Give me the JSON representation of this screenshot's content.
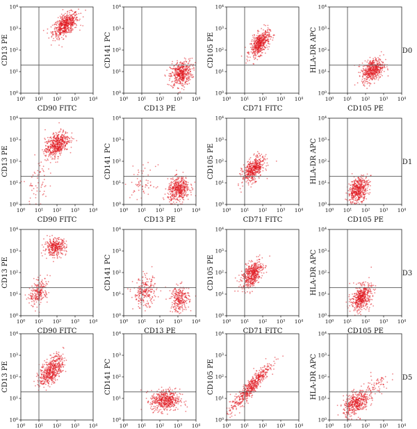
{
  "chart_data": {
    "type": "scatter",
    "axis_scale": "log",
    "axis_range": [
      1,
      10000
    ],
    "tick_labels": [
      "10⁰",
      "10¹",
      "10²",
      "10³",
      "10⁴"
    ],
    "point_color": "#e0161d",
    "rows": [
      {
        "label": "D0",
        "panels": [
          {
            "xlabel": "CD90 FITC",
            "ylabel": "CD13 PE",
            "gate": {
              "x": 10,
              "y": 20
            },
            "clusters": [
              {
                "cx": 300,
                "cy": 1500,
                "sx": 0.35,
                "sy": 0.28,
                "rho": 0.55,
                "n": 560
              }
            ]
          },
          {
            "xlabel": "CD13 PE",
            "ylabel": "CD141 PC",
            "gate": {
              "x": 10,
              "y": 20
            },
            "clusters": [
              {
                "cx": 1500,
                "cy": 8,
                "sx": 0.3,
                "sy": 0.3,
                "rho": 0.2,
                "n": 460
              }
            ]
          },
          {
            "xlabel": "CD71 FITC",
            "ylabel": "CD105 PE",
            "gate": {
              "x": 10,
              "y": 20
            },
            "clusters": [
              {
                "cx": 70,
                "cy": 200,
                "sx": 0.27,
                "sy": 0.3,
                "rho": 0.55,
                "n": 500
              }
            ]
          },
          {
            "xlabel": "CD105 PE",
            "ylabel": "HLA-DR APC",
            "gate": {
              "x": 10,
              "y": 20
            },
            "clusters": [
              {
                "cx": 250,
                "cy": 12,
                "sx": 0.3,
                "sy": 0.27,
                "rho": 0.35,
                "n": 500
              }
            ]
          }
        ]
      },
      {
        "label": "D1",
        "panels": [
          {
            "xlabel": "CD90 FITC",
            "ylabel": "CD13 PE",
            "gate": {
              "x": 10,
              "y": 20
            },
            "clusters": [
              {
                "cx": 100,
                "cy": 600,
                "sx": 0.33,
                "sy": 0.3,
                "rho": 0.45,
                "n": 520
              },
              {
                "cx": 8,
                "cy": 12,
                "sx": 0.3,
                "sy": 0.55,
                "rho": 0.3,
                "n": 60
              }
            ]
          },
          {
            "xlabel": "CD13 PE",
            "ylabel": "CD141 PC",
            "gate": {
              "x": 10,
              "y": 20
            },
            "clusters": [
              {
                "cx": 1100,
                "cy": 5,
                "sx": 0.3,
                "sy": 0.28,
                "rho": 0.2,
                "n": 460
              },
              {
                "cx": 12,
                "cy": 10,
                "sx": 0.35,
                "sy": 0.4,
                "rho": 0,
                "n": 60
              }
            ]
          },
          {
            "xlabel": "CD71 FITC",
            "ylabel": "CD105 PE",
            "gate": {
              "x": 10,
              "y": 20
            },
            "clusters": [
              {
                "cx": 30,
                "cy": 40,
                "sx": 0.3,
                "sy": 0.3,
                "rho": 0.5,
                "n": 480
              }
            ]
          },
          {
            "xlabel": "CD105 PE",
            "ylabel": "HLA-DR APC",
            "gate": {
              "x": 10,
              "y": 20
            },
            "clusters": [
              {
                "cx": 40,
                "cy": 5,
                "sx": 0.28,
                "sy": 0.3,
                "rho": 0.35,
                "n": 480
              }
            ]
          }
        ]
      },
      {
        "label": "D3",
        "panels": [
          {
            "xlabel": "CD90 FITC",
            "ylabel": "CD13 PE",
            "gate": {
              "x": 10,
              "y": 20
            },
            "clusters": [
              {
                "cx": 80,
                "cy": 1500,
                "sx": 0.3,
                "sy": 0.2,
                "rho": 0.1,
                "n": 320
              },
              {
                "cx": 10,
                "cy": 12,
                "sx": 0.25,
                "sy": 0.3,
                "rho": 0.4,
                "n": 220
              }
            ]
          },
          {
            "xlabel": "CD13 PE",
            "ylabel": "CD141 PC",
            "gate": {
              "x": 10,
              "y": 20
            },
            "clusters": [
              {
                "cx": 15,
                "cy": 12,
                "sx": 0.32,
                "sy": 0.35,
                "rho": 0.1,
                "n": 230
              },
              {
                "cx": 1300,
                "cy": 6,
                "sx": 0.25,
                "sy": 0.3,
                "rho": 0.1,
                "n": 260
              }
            ]
          },
          {
            "xlabel": "CD71 FITC",
            "ylabel": "CD105 PE",
            "gate": {
              "x": 10,
              "y": 20
            },
            "clusters": [
              {
                "cx": 25,
                "cy": 80,
                "sx": 0.3,
                "sy": 0.32,
                "rho": 0.5,
                "n": 500
              }
            ]
          },
          {
            "xlabel": "CD105 PE",
            "ylabel": "HLA-DR APC",
            "gate": {
              "x": 10,
              "y": 20
            },
            "clusters": [
              {
                "cx": 60,
                "cy": 7,
                "sx": 0.28,
                "sy": 0.3,
                "rho": 0.35,
                "n": 480
              }
            ]
          }
        ]
      },
      {
        "label": "D5",
        "panels": [
          {
            "xlabel": "CD90 FITC",
            "ylabel": "CD13 PE",
            "gate": {
              "x": 10,
              "y": 20
            },
            "clusters": [
              {
                "cx": 50,
                "cy": 200,
                "sx": 0.33,
                "sy": 0.35,
                "rho": 0.55,
                "n": 520
              }
            ]
          },
          {
            "xlabel": "CD13 PE",
            "ylabel": "CD141 PC",
            "gate": {
              "x": 10,
              "y": 20
            },
            "clusters": [
              {
                "cx": 200,
                "cy": 8,
                "sx": 0.4,
                "sy": 0.25,
                "rho": 0.05,
                "n": 500
              }
            ]
          },
          {
            "xlabel": "CD71 FITC",
            "ylabel": "CD105 PE",
            "gate": {
              "x": 10,
              "y": 20
            },
            "clusters": [
              {
                "cx": 20,
                "cy": 30,
                "sx": 0.55,
                "sy": 0.55,
                "rho": 0.93,
                "n": 560
              }
            ]
          },
          {
            "xlabel": "CD105 PE",
            "ylabel": "HLA-DR APC",
            "gate": {
              "x": 10,
              "y": 20
            },
            "clusters": [
              {
                "cx": 30,
                "cy": 6,
                "sx": 0.35,
                "sy": 0.28,
                "rho": 0.4,
                "n": 420
              },
              {
                "cx": 300,
                "cy": 30,
                "sx": 0.45,
                "sy": 0.35,
                "rho": 0.7,
                "n": 80
              }
            ]
          }
        ]
      }
    ]
  }
}
